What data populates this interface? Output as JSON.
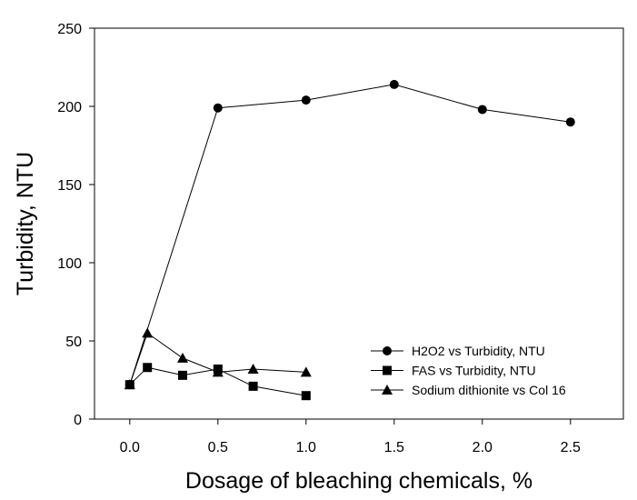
{
  "chart_data": {
    "type": "line",
    "title": "",
    "xlabel": "Dosage of bleaching chemicals, %",
    "ylabel": "Turbidity, NTU",
    "xlim": [
      -0.2,
      2.8
    ],
    "ylim": [
      0,
      250
    ],
    "xticks": [
      "0.0",
      "0.5",
      "1.0",
      "1.5",
      "2.0",
      "2.5"
    ],
    "yticks": [
      "0",
      "50",
      "100",
      "150",
      "200",
      "250"
    ],
    "grid": false,
    "legend_position": "bottom-right",
    "series": [
      {
        "name": "H2O2 vs Turbidity, NTU",
        "marker": "circle",
        "x": [
          0.0,
          0.5,
          1.0,
          1.5,
          2.0,
          2.5
        ],
        "y": [
          22,
          199,
          204,
          214,
          198,
          190
        ]
      },
      {
        "name": "FAS vs Turbidity, NTU",
        "marker": "square",
        "x": [
          0.0,
          0.1,
          0.3,
          0.5,
          0.7,
          1.0
        ],
        "y": [
          22,
          33,
          28,
          32,
          21,
          15
        ]
      },
      {
        "name": "Sodium dithionite vs Col 16",
        "marker": "triangle",
        "x": [
          0.0,
          0.1,
          0.3,
          0.5,
          0.7,
          1.0
        ],
        "y": [
          22,
          55,
          39,
          30,
          32,
          30
        ]
      }
    ]
  }
}
